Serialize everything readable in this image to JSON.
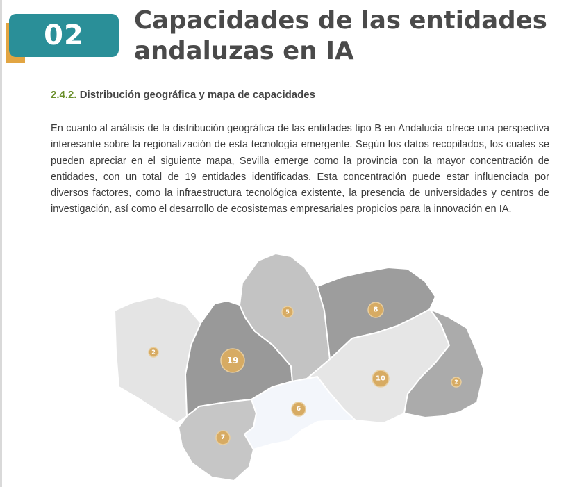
{
  "header": {
    "chapter_number": "02",
    "title_line1": "Capacidades de las entidades",
    "title_line2": "andaluzas en IA"
  },
  "section": {
    "number": "2.4.2.",
    "title": "Distribución geográfica y mapa de capacidades"
  },
  "body_text": "En cuanto al análisis de la distribución geográfica de las entidades tipo B en Andalucía ofrece una perspectiva interesante sobre la regionalización de esta tecnología emergente. Según los datos recopilados, los cuales se pueden apreciar en el siguiente mapa, Sevilla emerge como la provincia con la mayor concentración de entidades, con un total de 19 entidades identificadas. Esta concentración puede estar influenciada por diversos factores, como la infraestructura tecnológica existente, la presencia de universidades y centros de investigación, así como el desarrollo de ecosistemas empresariales propicios para la innovación en IA.",
  "map": {
    "colors": {
      "marker": "#d7ab63",
      "badge": "#2a8f98",
      "accent": "#e2a542",
      "section_number": "#6a8f2a"
    },
    "provinces": [
      {
        "id": "huelva",
        "count": "2",
        "shade": "#e4e4e4"
      },
      {
        "id": "sevilla",
        "count": "19",
        "shade": "#999999"
      },
      {
        "id": "cadiz",
        "count": "7",
        "shade": "#c6c6c6"
      },
      {
        "id": "cordoba",
        "count": "5",
        "shade": "#c3c3c3"
      },
      {
        "id": "malaga",
        "count": "6",
        "shade": "#f3f6fb"
      },
      {
        "id": "jaen",
        "count": "8",
        "shade": "#9d9d9d"
      },
      {
        "id": "granada",
        "count": "10",
        "shade": "#e6e6e6"
      },
      {
        "id": "almeria",
        "count": "2",
        "shade": "#ababab"
      }
    ]
  }
}
